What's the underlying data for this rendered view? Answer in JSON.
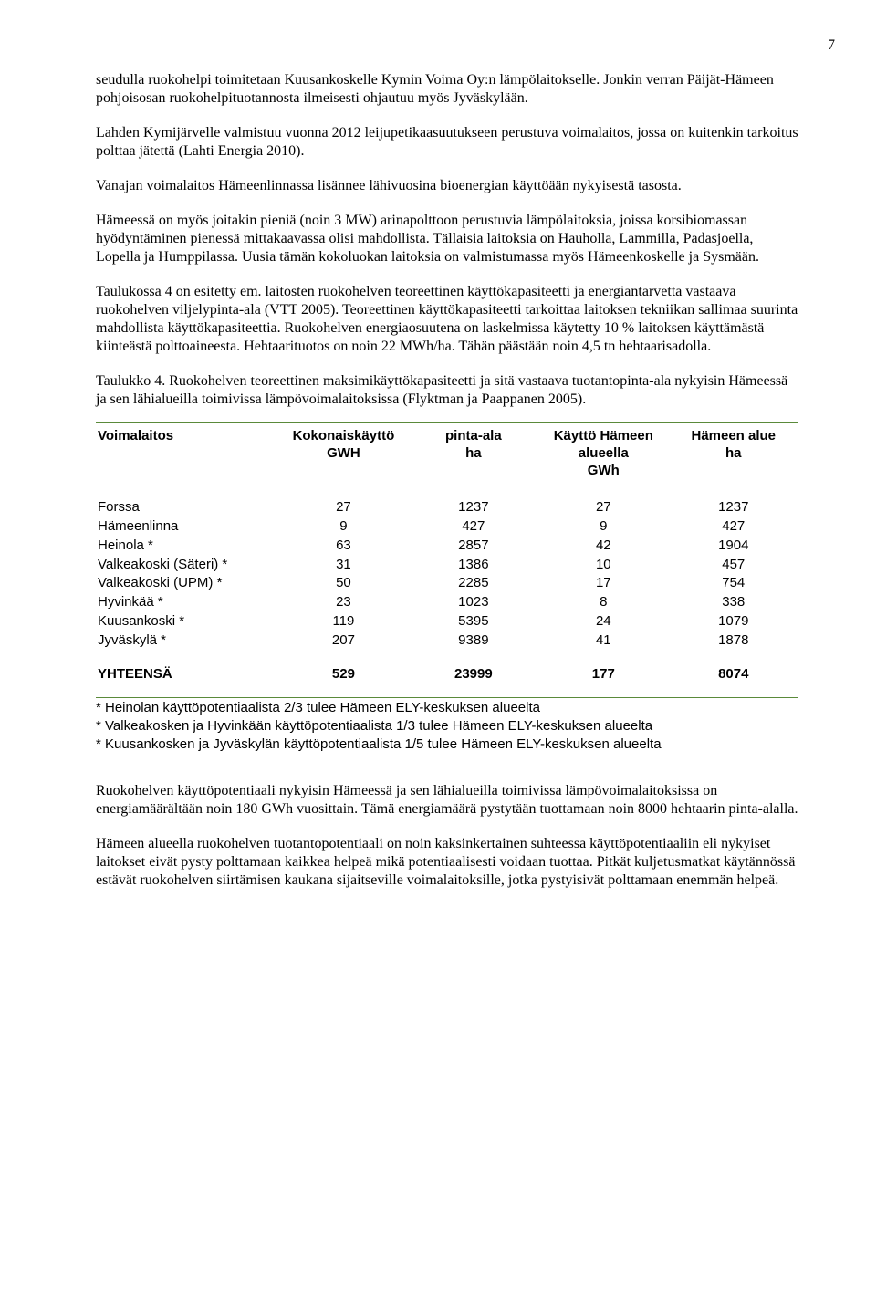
{
  "page_number": "7",
  "paragraphs": {
    "p1": "seudulla ruokohelpi toimitetaan Kuusankoskelle Kymin Voima Oy:n lämpölaitokselle. Jonkin verran Päijät-Hämeen pohjoisosan ruokohelpituotannosta ilmeisesti ohjautuu myös Jyväskylään.",
    "p2": "Lahden Kymijärvelle valmistuu vuonna 2012 leijupetikaasuutukseen perustuva voimalaitos, jossa on kuitenkin tarkoitus polttaa jätettä (Lahti Energia 2010).",
    "p3": "Vanajan voimalaitos Hämeenlinnassa lisännee lähivuosina bioenergian käyttöään nykyisestä tasosta.",
    "p4": "Hämeessä on myös joitakin pieniä (noin 3 MW) arinapolttoon perustuvia lämpölaitoksia, joissa korsibiomassan hyödyntäminen pienessä mittakaavassa olisi mahdollista. Tällaisia laitoksia on Hauholla, Lammilla, Padasjoella, Lopella ja Humppilassa. Uusia tämän kokoluokan laitoksia on valmistumassa myös Hämeenkoskelle ja Sysmään.",
    "p5": "Taulukossa 4 on esitetty em. laitosten ruokohelven teoreettinen käyttökapasiteetti ja energiantarvetta vastaava ruokohelven viljelypinta-ala (VTT 2005). Teoreettinen käyttökapasiteetti tarkoittaa laitoksen tekniikan sallimaa suurinta mahdollista käyttökapasiteettia. Ruokohelven energiaosuutena on laskelmissa käytetty 10 % laitoksen käyttämästä kiinteästä polttoaineesta. Hehtaarituotos on noin 22 MWh/ha. Tähän päästään noin 4,5 tn hehtaarisadolla.",
    "table_caption": "Taulukko 4. Ruokohelven teoreettinen maksimikäyttökapasiteetti ja sitä vastaava tuotantopinta-ala nykyisin Hämeessä ja sen lähialueilla toimivissa lämpövoimalaitoksissa (Flyktman ja Paappanen 2005).",
    "p6": "Ruokohelven käyttöpotentiaali nykyisin Hämeessä ja sen lähialueilla toimivissa lämpövoimalaitoksissa on energiamäärältään noin 180 GWh vuosittain. Tämä energiamäärä pystytään tuottamaan noin 8000 hehtaarin pinta-alalla.",
    "p7": "Hämeen alueella ruokohelven tuotantopotentiaali on noin kaksinkertainen suhteessa käyttöpotentiaaliin eli nykyiset laitokset eivät pysty polttamaan kaikkea helpeä mikä potentiaalisesti voidaan tuottaa. Pitkät kuljetusmatkat käytännössä estävät ruokohelven siirtämisen kaukana sijaitseville voimalaitoksille, jotka pystyisivät polttamaan enemmän helpeä."
  },
  "table": {
    "columns": [
      {
        "line1": "Voimalaitos",
        "line2": ""
      },
      {
        "line1": "Kokonaiskäyttö",
        "line2": "GWH"
      },
      {
        "line1": "pinta-ala",
        "line2": "ha"
      },
      {
        "line1": "Käyttö Hämeen alueella",
        "line2": "GWh"
      },
      {
        "line1": "Hämeen alue",
        "line2": "ha"
      }
    ],
    "rows": [
      {
        "name": "Forssa",
        "c1": "27",
        "c2": "1237",
        "c3": "27",
        "c4": "1237"
      },
      {
        "name": "Hämeenlinna",
        "c1": "9",
        "c2": "427",
        "c3": "9",
        "c4": "427"
      },
      {
        "name": "Heinola *",
        "c1": "63",
        "c2": "2857",
        "c3": "42",
        "c4": "1904"
      },
      {
        "name": "Valkeakoski (Säteri) *",
        "c1": "31",
        "c2": "1386",
        "c3": "10",
        "c4": "457"
      },
      {
        "name": "Valkeakoski (UPM) *",
        "c1": "50",
        "c2": "2285",
        "c3": "17",
        "c4": "754"
      },
      {
        "name": "Hyvinkää *",
        "c1": "23",
        "c2": "1023",
        "c3": "8",
        "c4": "338"
      },
      {
        "name": "Kuusankoski *",
        "c1": "119",
        "c2": "5395",
        "c3": "24",
        "c4": "1079"
      },
      {
        "name": "Jyväskylä *",
        "c1": "207",
        "c2": "9389",
        "c3": "41",
        "c4": "1878"
      }
    ],
    "total": {
      "name": "YHTEENSÄ",
      "c1": "529",
      "c2": "23999",
      "c3": "177",
      "c4": "8074"
    }
  },
  "footnotes": {
    "f1": "* Heinolan käyttöpotentiaalista 2/3 tulee Hämeen ELY-keskuksen alueelta",
    "f2": "* Valkeakosken ja Hyvinkään  käyttöpotentiaalista 1/3 tulee Hämeen ELY-keskuksen alueelta",
    "f3": "* Kuusankosken ja Jyväskylän käyttöpotentiaalista 1/5 tulee Hämeen ELY-keskuksen alueelta"
  },
  "colors": {
    "rule_green": "#5a8a3a",
    "rule_black": "#000000",
    "text": "#000000",
    "background": "#ffffff"
  }
}
